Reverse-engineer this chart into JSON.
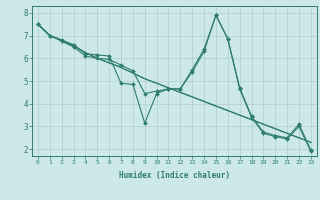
{
  "title": "",
  "xlabel": "Humidex (Indice chaleur)",
  "ylabel": "",
  "bg_color": "#cce8e8",
  "grid_color": "#b0cccc",
  "line_color": "#2e7d6e",
  "xlim": [
    -0.5,
    23.5
  ],
  "ylim": [
    1.7,
    8.3
  ],
  "xticks": [
    0,
    1,
    2,
    3,
    4,
    5,
    6,
    7,
    8,
    9,
    10,
    11,
    12,
    13,
    14,
    15,
    16,
    17,
    18,
    19,
    20,
    21,
    22,
    23
  ],
  "yticks": [
    2,
    3,
    4,
    5,
    6,
    7,
    8
  ],
  "series": [
    [
      7.5,
      7.0,
      6.8,
      6.6,
      6.2,
      6.15,
      6.1,
      4.9,
      4.85,
      3.15,
      4.45,
      4.65,
      4.65,
      5.5,
      6.4,
      7.9,
      6.85,
      4.7,
      3.45,
      2.75,
      2.6,
      2.5,
      3.1,
      1.95
    ],
    [
      7.5,
      7.0,
      6.8,
      6.55,
      6.25,
      6.0,
      5.8,
      5.6,
      5.35,
      5.1,
      4.9,
      4.7,
      4.5,
      4.3,
      4.1,
      3.9,
      3.7,
      3.5,
      3.3,
      3.1,
      2.9,
      2.7,
      2.5,
      2.3
    ],
    [
      7.5,
      7.0,
      6.8,
      6.55,
      6.25,
      6.0,
      5.8,
      5.6,
      5.35,
      5.1,
      4.9,
      4.7,
      4.5,
      4.3,
      4.1,
      3.9,
      3.7,
      3.5,
      3.3,
      3.1,
      2.9,
      2.7,
      2.5,
      2.3
    ],
    [
      7.5,
      7.0,
      6.75,
      6.5,
      6.1,
      6.0,
      5.95,
      5.7,
      5.45,
      4.45,
      4.55,
      4.65,
      4.65,
      5.4,
      6.3,
      7.9,
      6.85,
      4.65,
      3.4,
      2.7,
      2.55,
      2.45,
      3.0,
      1.9
    ]
  ]
}
